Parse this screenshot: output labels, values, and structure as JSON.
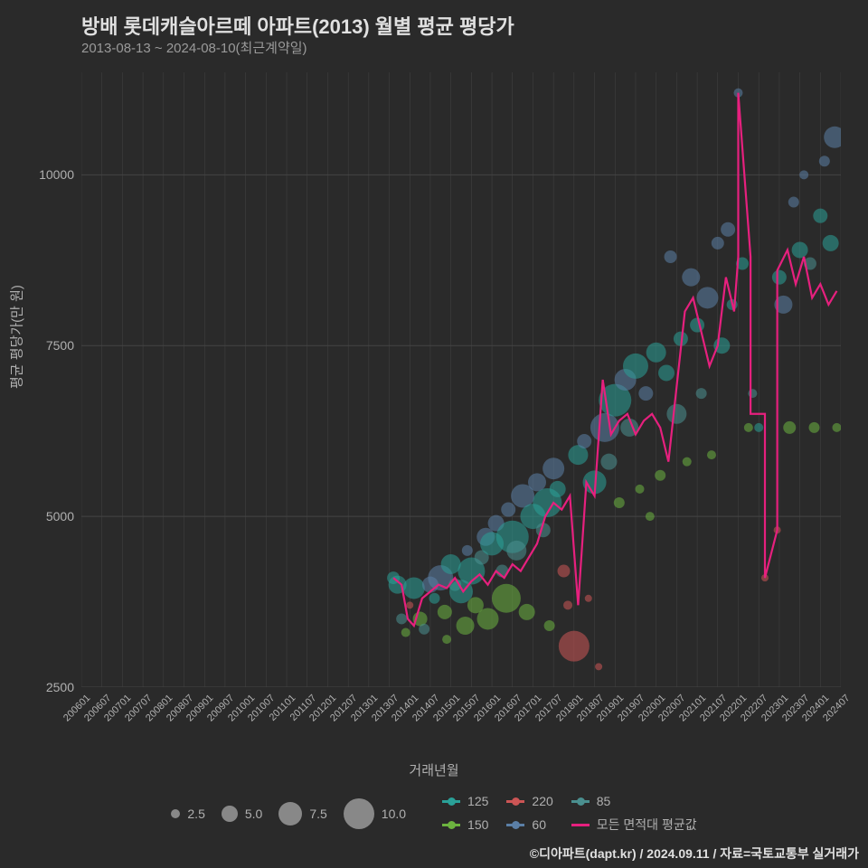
{
  "title": "방배 롯데캐슬아르떼 아파트(2013) 월별 평균 평당가",
  "subtitle": "2013-08-13 ~ 2024-08-10(최근계약일)",
  "ylabel": "평균 평당가(만 원)",
  "xlabel": "거래년월",
  "credit": "©디아파트(dapt.kr) / 2024.09.11 / 자료=국토교통부 실거래가",
  "chart": {
    "type": "bubble+line",
    "background_color": "#2a2a2a",
    "grid_color": "#444444",
    "ylim": [
      2500,
      11500
    ],
    "yticks": [
      2500,
      5000,
      7500,
      10000
    ],
    "x_range": [
      0,
      37
    ],
    "xtick_labels": [
      "200601",
      "200607",
      "200701",
      "200707",
      "200801",
      "200807",
      "200901",
      "200907",
      "201001",
      "201007",
      "201101",
      "201107",
      "201201",
      "201207",
      "201301",
      "201307",
      "201401",
      "201407",
      "201501",
      "201507",
      "201601",
      "201607",
      "201701",
      "201707",
      "201801",
      "201807",
      "201901",
      "201907",
      "202001",
      "202007",
      "202101",
      "202107",
      "202201",
      "202207",
      "202301",
      "202307",
      "202401",
      "202407"
    ],
    "series_colors": {
      "125": "#2aa198",
      "150": "#6cb33f",
      "220": "#cc5555",
      "60": "#5b7fa6",
      "85": "#4a8f8f",
      "line": "#e6207e"
    },
    "size_legend": [
      {
        "label": "2.5",
        "r": 5
      },
      {
        "label": "5.0",
        "r": 9
      },
      {
        "label": "7.5",
        "r": 13
      },
      {
        "label": "10.0",
        "r": 17
      }
    ],
    "color_legend": [
      {
        "label": "125",
        "color": "#2aa198"
      },
      {
        "label": "220",
        "color": "#cc5555"
      },
      {
        "label": "85",
        "color": "#4a8f8f"
      },
      {
        "label": "150",
        "color": "#6cb33f"
      },
      {
        "label": "60",
        "color": "#5b7fa6"
      },
      {
        "label": "모든 면적대 평균값",
        "color": "#e6207e",
        "line": true
      }
    ],
    "bubbles": [
      {
        "x": 15.2,
        "y": 4100,
        "r": 7,
        "s": "125"
      },
      {
        "x": 15.4,
        "y": 4000,
        "r": 10,
        "s": "125"
      },
      {
        "x": 15.6,
        "y": 3500,
        "r": 6,
        "s": "85"
      },
      {
        "x": 15.8,
        "y": 3300,
        "r": 5,
        "s": "150"
      },
      {
        "x": 16.0,
        "y": 3700,
        "r": 4,
        "s": "220"
      },
      {
        "x": 16.2,
        "y": 3950,
        "r": 12,
        "s": "125"
      },
      {
        "x": 16.5,
        "y": 3500,
        "r": 8,
        "s": "150"
      },
      {
        "x": 16.7,
        "y": 3350,
        "r": 6,
        "s": "85"
      },
      {
        "x": 17.0,
        "y": 4000,
        "r": 9,
        "s": "60"
      },
      {
        "x": 17.2,
        "y": 3800,
        "r": 6,
        "s": "125"
      },
      {
        "x": 17.5,
        "y": 4100,
        "r": 14,
        "s": "60"
      },
      {
        "x": 17.7,
        "y": 3600,
        "r": 8,
        "s": "150"
      },
      {
        "x": 17.8,
        "y": 3200,
        "r": 5,
        "s": "150"
      },
      {
        "x": 18.0,
        "y": 4300,
        "r": 11,
        "s": "125"
      },
      {
        "x": 18.2,
        "y": 4000,
        "r": 7,
        "s": "85"
      },
      {
        "x": 18.5,
        "y": 3900,
        "r": 13,
        "s": "125"
      },
      {
        "x": 18.7,
        "y": 3400,
        "r": 10,
        "s": "150"
      },
      {
        "x": 18.8,
        "y": 4500,
        "r": 6,
        "s": "60"
      },
      {
        "x": 19.0,
        "y": 4200,
        "r": 15,
        "s": "125"
      },
      {
        "x": 19.2,
        "y": 3700,
        "r": 9,
        "s": "150"
      },
      {
        "x": 19.5,
        "y": 4400,
        "r": 8,
        "s": "85"
      },
      {
        "x": 19.7,
        "y": 4700,
        "r": 10,
        "s": "60"
      },
      {
        "x": 19.8,
        "y": 3500,
        "r": 12,
        "s": "150"
      },
      {
        "x": 20.0,
        "y": 4600,
        "r": 13,
        "s": "125"
      },
      {
        "x": 20.2,
        "y": 4900,
        "r": 9,
        "s": "60"
      },
      {
        "x": 20.5,
        "y": 4200,
        "r": 7,
        "s": "85"
      },
      {
        "x": 20.7,
        "y": 3800,
        "r": 16,
        "s": "150"
      },
      {
        "x": 20.8,
        "y": 5100,
        "r": 8,
        "s": "60"
      },
      {
        "x": 21.0,
        "y": 4700,
        "r": 18,
        "s": "125"
      },
      {
        "x": 21.2,
        "y": 4500,
        "r": 11,
        "s": "85"
      },
      {
        "x": 21.5,
        "y": 5300,
        "r": 13,
        "s": "60"
      },
      {
        "x": 21.7,
        "y": 3600,
        "r": 9,
        "s": "150"
      },
      {
        "x": 22.0,
        "y": 5000,
        "r": 14,
        "s": "125"
      },
      {
        "x": 22.2,
        "y": 5500,
        "r": 10,
        "s": "60"
      },
      {
        "x": 22.5,
        "y": 4800,
        "r": 8,
        "s": "85"
      },
      {
        "x": 22.7,
        "y": 5200,
        "r": 16,
        "s": "125"
      },
      {
        "x": 22.8,
        "y": 3400,
        "r": 6,
        "s": "150"
      },
      {
        "x": 23.0,
        "y": 5700,
        "r": 12,
        "s": "60"
      },
      {
        "x": 23.2,
        "y": 5400,
        "r": 9,
        "s": "125"
      },
      {
        "x": 23.5,
        "y": 4200,
        "r": 7,
        "s": "220"
      },
      {
        "x": 23.7,
        "y": 3700,
        "r": 5,
        "s": "220"
      },
      {
        "x": 24.0,
        "y": 3100,
        "r": 17,
        "s": "220"
      },
      {
        "x": 24.2,
        "y": 5900,
        "r": 11,
        "s": "125"
      },
      {
        "x": 24.5,
        "y": 6100,
        "r": 8,
        "s": "60"
      },
      {
        "x": 24.7,
        "y": 3800,
        "r": 4,
        "s": "220"
      },
      {
        "x": 25.0,
        "y": 5500,
        "r": 13,
        "s": "125"
      },
      {
        "x": 25.2,
        "y": 2800,
        "r": 4,
        "s": "220"
      },
      {
        "x": 25.5,
        "y": 6300,
        "r": 16,
        "s": "60"
      },
      {
        "x": 25.7,
        "y": 5800,
        "r": 9,
        "s": "85"
      },
      {
        "x": 26.0,
        "y": 6700,
        "r": 18,
        "s": "125"
      },
      {
        "x": 26.2,
        "y": 5200,
        "r": 6,
        "s": "150"
      },
      {
        "x": 26.5,
        "y": 7000,
        "r": 12,
        "s": "60"
      },
      {
        "x": 26.7,
        "y": 6300,
        "r": 10,
        "s": "85"
      },
      {
        "x": 27.0,
        "y": 7200,
        "r": 14,
        "s": "125"
      },
      {
        "x": 27.2,
        "y": 5400,
        "r": 5,
        "s": "150"
      },
      {
        "x": 27.5,
        "y": 6800,
        "r": 8,
        "s": "60"
      },
      {
        "x": 27.7,
        "y": 5000,
        "r": 5,
        "s": "150"
      },
      {
        "x": 28.0,
        "y": 7400,
        "r": 11,
        "s": "125"
      },
      {
        "x": 28.2,
        "y": 5600,
        "r": 6,
        "s": "150"
      },
      {
        "x": 28.5,
        "y": 7100,
        "r": 9,
        "s": "125"
      },
      {
        "x": 28.7,
        "y": 8800,
        "r": 7,
        "s": "60"
      },
      {
        "x": 29.0,
        "y": 6500,
        "r": 11,
        "s": "85"
      },
      {
        "x": 29.2,
        "y": 7600,
        "r": 8,
        "s": "125"
      },
      {
        "x": 29.5,
        "y": 5800,
        "r": 5,
        "s": "150"
      },
      {
        "x": 29.7,
        "y": 8500,
        "r": 10,
        "s": "60"
      },
      {
        "x": 30.0,
        "y": 7800,
        "r": 8,
        "s": "125"
      },
      {
        "x": 30.2,
        "y": 6800,
        "r": 6,
        "s": "85"
      },
      {
        "x": 30.5,
        "y": 8200,
        "r": 12,
        "s": "60"
      },
      {
        "x": 30.7,
        "y": 5900,
        "r": 5,
        "s": "150"
      },
      {
        "x": 31.0,
        "y": 9000,
        "r": 7,
        "s": "60"
      },
      {
        "x": 31.2,
        "y": 7500,
        "r": 9,
        "s": "125"
      },
      {
        "x": 31.5,
        "y": 9200,
        "r": 8,
        "s": "60"
      },
      {
        "x": 31.7,
        "y": 8100,
        "r": 6,
        "s": "125"
      },
      {
        "x": 32.0,
        "y": 11200,
        "r": 5,
        "s": "60"
      },
      {
        "x": 32.2,
        "y": 8700,
        "r": 7,
        "s": "125"
      },
      {
        "x": 32.5,
        "y": 6300,
        "r": 5,
        "s": "150"
      },
      {
        "x": 32.7,
        "y": 6800,
        "r": 5,
        "s": "85"
      },
      {
        "x": 33.0,
        "y": 6300,
        "r": 5,
        "s": "125"
      },
      {
        "x": 33.3,
        "y": 4100,
        "r": 4,
        "s": "220"
      },
      {
        "x": 33.9,
        "y": 4800,
        "r": 4,
        "s": "220"
      },
      {
        "x": 34.0,
        "y": 8500,
        "r": 8,
        "s": "125"
      },
      {
        "x": 34.2,
        "y": 8100,
        "r": 10,
        "s": "60"
      },
      {
        "x": 34.5,
        "y": 6300,
        "r": 7,
        "s": "150"
      },
      {
        "x": 34.7,
        "y": 9600,
        "r": 6,
        "s": "60"
      },
      {
        "x": 35.0,
        "y": 8900,
        "r": 9,
        "s": "125"
      },
      {
        "x": 35.2,
        "y": 10000,
        "r": 5,
        "s": "60"
      },
      {
        "x": 35.5,
        "y": 8700,
        "r": 7,
        "s": "85"
      },
      {
        "x": 35.7,
        "y": 6300,
        "r": 6,
        "s": "150"
      },
      {
        "x": 36.0,
        "y": 9400,
        "r": 8,
        "s": "125"
      },
      {
        "x": 36.2,
        "y": 10200,
        "r": 6,
        "s": "60"
      },
      {
        "x": 36.5,
        "y": 9000,
        "r": 9,
        "s": "125"
      },
      {
        "x": 36.7,
        "y": 10550,
        "r": 12,
        "s": "60"
      },
      {
        "x": 36.8,
        "y": 6300,
        "r": 5,
        "s": "150"
      }
    ],
    "line": [
      {
        "x": 15.2,
        "y": 4100
      },
      {
        "x": 15.6,
        "y": 4000
      },
      {
        "x": 15.9,
        "y": 3500
      },
      {
        "x": 16.2,
        "y": 3400
      },
      {
        "x": 16.6,
        "y": 3800
      },
      {
        "x": 17.0,
        "y": 3900
      },
      {
        "x": 17.4,
        "y": 4000
      },
      {
        "x": 17.8,
        "y": 3950
      },
      {
        "x": 18.2,
        "y": 4100
      },
      {
        "x": 18.6,
        "y": 3900
      },
      {
        "x": 19.0,
        "y": 4050
      },
      {
        "x": 19.4,
        "y": 4150
      },
      {
        "x": 19.8,
        "y": 4000
      },
      {
        "x": 20.2,
        "y": 4200
      },
      {
        "x": 20.6,
        "y": 4100
      },
      {
        "x": 21.0,
        "y": 4300
      },
      {
        "x": 21.4,
        "y": 4200
      },
      {
        "x": 21.8,
        "y": 4400
      },
      {
        "x": 22.2,
        "y": 4600
      },
      {
        "x": 22.6,
        "y": 5000
      },
      {
        "x": 23.0,
        "y": 5200
      },
      {
        "x": 23.4,
        "y": 5100
      },
      {
        "x": 23.8,
        "y": 5300
      },
      {
        "x": 24.2,
        "y": 3700
      },
      {
        "x": 24.6,
        "y": 5500
      },
      {
        "x": 25.0,
        "y": 5300
      },
      {
        "x": 25.4,
        "y": 7000
      },
      {
        "x": 25.8,
        "y": 6200
      },
      {
        "x": 26.2,
        "y": 6400
      },
      {
        "x": 26.6,
        "y": 6500
      },
      {
        "x": 27.0,
        "y": 6200
      },
      {
        "x": 27.4,
        "y": 6400
      },
      {
        "x": 27.8,
        "y": 6500
      },
      {
        "x": 28.2,
        "y": 6300
      },
      {
        "x": 28.6,
        "y": 5800
      },
      {
        "x": 29.0,
        "y": 6900
      },
      {
        "x": 29.4,
        "y": 8000
      },
      {
        "x": 29.8,
        "y": 8200
      },
      {
        "x": 30.2,
        "y": 7700
      },
      {
        "x": 30.6,
        "y": 7200
      },
      {
        "x": 31.0,
        "y": 7500
      },
      {
        "x": 31.4,
        "y": 8500
      },
      {
        "x": 31.8,
        "y": 8000
      },
      {
        "x": 32.0,
        "y": 8800
      },
      {
        "x": 32.0,
        "y": 11200
      },
      {
        "x": 32.6,
        "y": 8800
      },
      {
        "x": 32.6,
        "y": 6500
      },
      {
        "x": 33.3,
        "y": 6500
      },
      {
        "x": 33.3,
        "y": 4100
      },
      {
        "x": 33.9,
        "y": 4800
      },
      {
        "x": 33.9,
        "y": 8600
      },
      {
        "x": 34.4,
        "y": 8900
      },
      {
        "x": 34.8,
        "y": 8400
      },
      {
        "x": 35.2,
        "y": 8800
      },
      {
        "x": 35.6,
        "y": 8200
      },
      {
        "x": 36.0,
        "y": 8400
      },
      {
        "x": 36.4,
        "y": 8100
      },
      {
        "x": 36.8,
        "y": 8300
      }
    ]
  }
}
